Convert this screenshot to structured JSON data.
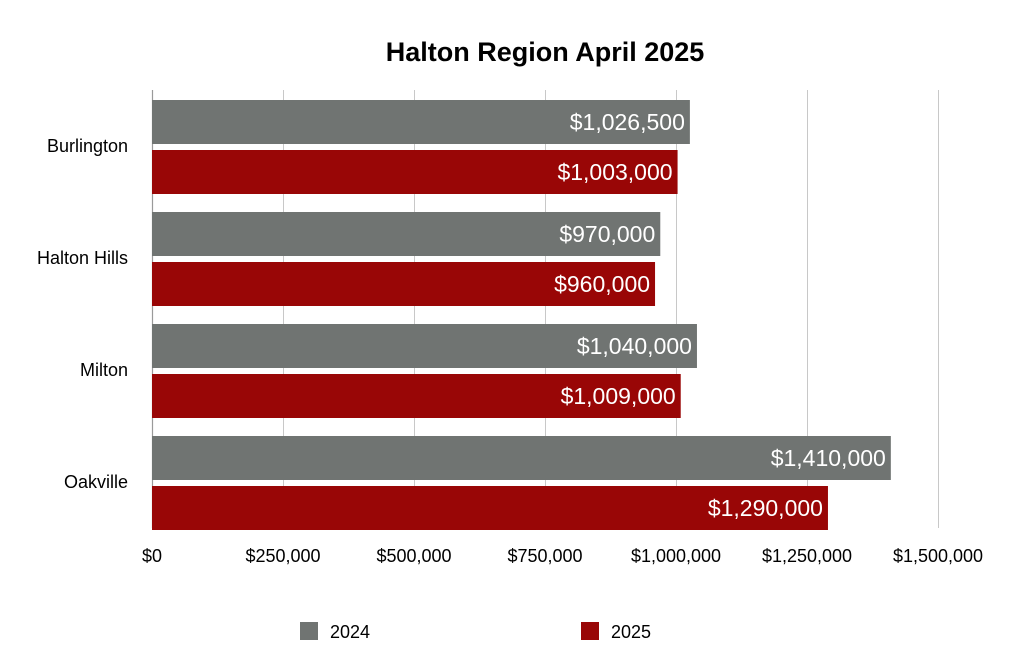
{
  "chart_data": {
    "type": "bar",
    "orientation": "horizontal",
    "title": "Halton Region April 2025",
    "categories": [
      "Burlington",
      "Halton Hills",
      "Milton",
      "Oakville"
    ],
    "series": [
      {
        "name": "2024",
        "color": "#707472",
        "values": [
          1026500,
          970000,
          1040000,
          1410000
        ],
        "labels": [
          "$1,026,500",
          "$970,000",
          "$1,040,000",
          "$1,410,000"
        ]
      },
      {
        "name": "2025",
        "color": "#990606",
        "values": [
          1003000,
          960000,
          1009000,
          1290000
        ],
        "labels": [
          "$1,003,000",
          "$960,000",
          "$1,009,000",
          "$1,290,000"
        ]
      }
    ],
    "xlim": [
      0,
      1500000
    ],
    "x_ticks": [
      0,
      250000,
      500000,
      750000,
      1000000,
      1250000,
      1500000
    ],
    "x_tick_labels": [
      "$0",
      "$250,000",
      "$500,000",
      "$750,000",
      "$1,000,000",
      "$1,250,000",
      "$1,500,000"
    ],
    "grid": true,
    "legend_position": "bottom"
  }
}
